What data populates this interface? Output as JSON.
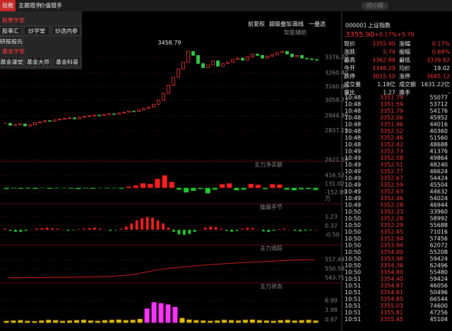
{
  "top_bar": {
    "tabs": [
      "投教",
      "主题猎手",
      "价值猎手"
    ],
    "search": "问小倍"
  },
  "menu": {
    "sections": [
      {
        "title": "股票学堂",
        "items": [
          "股事汇",
          "炒学堂",
          "炒选内参",
          "研报报告"
        ]
      },
      {
        "title": "基金学堂",
        "items": [
          "基金课堂",
          "基金大师",
          "基金科普"
        ]
      }
    ]
  },
  "toolbar": [
    "前复权",
    "超级叠加",
    "画线",
    "一叠选"
  ],
  "main_chart": {
    "label": "智能辅助",
    "max_label": "3458.79",
    "ylim": [
      2610,
      3590
    ],
    "yticks": [
      {
        "value": 3376.2,
        "label": "3376.20"
      },
      {
        "value": 3260.4,
        "label": "3260.40"
      },
      {
        "value": 3160.6,
        "label": "3160.60"
      },
      3059.73,
      2944.99,
      2837.19,
      2621.58
    ],
    "closes": [
      2890,
      2875,
      2880,
      2885,
      2870,
      2878,
      2895,
      2900,
      2910,
      2905,
      2915,
      2920,
      2925,
      2930,
      2922,
      2935,
      2940,
      2945,
      2950,
      2948,
      2955,
      2960,
      2958,
      2965,
      2972,
      2980,
      2978,
      2990,
      3000,
      3010,
      3030,
      3060,
      3110,
      3170,
      3230,
      3290,
      3340,
      3420,
      3390,
      3330,
      3300,
      3320,
      3350,
      3310,
      3330,
      3340,
      3360,
      3370,
      3355,
      3380,
      3400,
      3390,
      3370,
      3385,
      3395,
      3410,
      3420,
      3400,
      3380,
      3390,
      3370,
      3365,
      3360,
      3356
    ]
  },
  "panels": [
    {
      "label": "主力净买额",
      "type": "bar",
      "unit": "万",
      "ylim": [
        -530,
        890
      ],
      "yticks": [
        416.52,
        131.02,
        -152.89
      ],
      "values": [
        -40,
        -20,
        -30,
        -25,
        -35,
        -10,
        -30,
        -20,
        -15,
        -25,
        -40,
        -20,
        -30,
        -10,
        -20,
        -15,
        -30,
        40,
        80,
        150,
        130,
        300,
        416,
        200,
        -60,
        -150,
        -100,
        -40,
        -180,
        -60,
        120,
        150,
        -80,
        -60,
        130,
        100,
        -40,
        120,
        110,
        -60,
        -80,
        -50,
        -40,
        -70
      ]
    },
    {
      "label": "操盘手节",
      "type": "bar",
      "ylim": [
        -1.44,
        2.5
      ],
      "yticks": [
        1.23,
        0.37,
        {
          "value": -0.5,
          "label": "-0.50"
        }
      ],
      "values": [
        0.1,
        -0.1,
        -0.2,
        -0.2,
        -0.1,
        0,
        0.1,
        0.15,
        0.2,
        0.15,
        0.1,
        0,
        -0.1,
        -0.05,
        0.05,
        0.1,
        0.15,
        0.2,
        0.1,
        0,
        -0.1,
        -0.05,
        0.1,
        0.3,
        0.6,
        0.9,
        1.1,
        1.23,
        1.15,
        0.9,
        0.6,
        0.2,
        -0.2,
        -0.45,
        -0.5,
        -0.4,
        -0.2,
        0,
        0.2,
        0.3,
        0.25,
        0.1,
        -0.1,
        -0.2,
        -0.1,
        0.1,
        0.2,
        0.15,
        0,
        -0.15,
        -0.2,
        -0.1,
        0.05,
        0.1,
        0,
        -0.1,
        -0.15,
        -0.1,
        -0.05,
        0
      ]
    },
    {
      "label": "主力追踪",
      "type": "line",
      "ylim": [
        540,
        568.6
      ],
      "yticks": [
        557.44,
        550.58,
        543.71
      ],
      "values": [
        543.8,
        543.9,
        544,
        544,
        544.1,
        544.2,
        544.3,
        544.4,
        544.6,
        544.8,
        545,
        545.5,
        546.5,
        548,
        549.5,
        550.6,
        551.5,
        552.3,
        553,
        553.6,
        554.1,
        554.6,
        555,
        555.4,
        555.8,
        556.2,
        556.6,
        557,
        557.3,
        557.44
      ]
    },
    {
      "label": "主力状态",
      "type": "bar",
      "ylim": [
        -2.6,
        12.6
      ],
      "yticks": [
        6.99,
        3.98,
        0.97
      ],
      "values": [
        0.6,
        0.7,
        0.8,
        0.6,
        0.5,
        0.7,
        0.9,
        0.8,
        0.6,
        0.7,
        0.8,
        0.9,
        0.7,
        0.6,
        0.8,
        0.9,
        1,
        0.8,
        0.9,
        1.2,
        4.5,
        6.5,
        6.2,
        5.8,
        5,
        1.5,
        1,
        0.8,
        0.7,
        0.6,
        0.7,
        0.9,
        0.8,
        0.7,
        0.9,
        1,
        0.8,
        0.7,
        0.6,
        0.8,
        0.9,
        0.7,
        0.8,
        0.9,
        0.7
      ]
    }
  ],
  "quote": {
    "code": "000001",
    "name": "上证指数",
    "price": "3355.90",
    "pct": "+0.17%",
    "chg": "+5.79",
    "stats": [
      [
        "现价",
        "3355.90",
        "涨幅",
        "0.17%"
      ],
      [
        "涨跌",
        "5.79",
        "振幅",
        "0.69%"
      ],
      [
        "最高",
        "3362.88",
        "最低",
        "3339.92"
      ],
      [
        "今开",
        "3346.29",
        "均价",
        "19.02"
      ],
      [
        "跌停",
        "3015.10",
        "涨停",
        "3685.12"
      ],
      [
        "成交量",
        "1.18亿",
        "成交额",
        "1631.22亿"
      ],
      [
        "量比",
        "1.27",
        "换手",
        "-"
      ]
    ]
  },
  "trades": [
    [
      "10:48",
      "3351.74",
      "55077"
    ],
    [
      "10:48",
      "3351.59",
      "53712"
    ],
    [
      "10:48",
      "3351.79",
      "54176"
    ],
    [
      "10:48",
      "3352.06",
      "45952"
    ],
    [
      "10:48",
      "3351.96",
      "44016"
    ],
    [
      "10:48",
      "3352.52",
      "40360"
    ],
    [
      "10:48",
      "3352.46",
      "51560"
    ],
    [
      "10:48",
      "3352.42",
      "48688"
    ],
    [
      "10:49",
      "3352.73",
      "41376"
    ],
    [
      "10:49",
      "3352.58",
      "49864"
    ],
    [
      "10:49",
      "3352.51",
      "48240"
    ],
    [
      "10:49",
      "3352.77",
      "46624"
    ],
    [
      "10:49",
      "3352.67",
      "54424"
    ],
    [
      "10:49",
      "3352.59",
      "45504"
    ],
    [
      "10:49",
      "3352.63",
      "44632"
    ],
    [
      "10:49",
      "3352.46",
      "54024"
    ],
    [
      "10:49",
      "3352.28",
      "46944"
    ],
    [
      "10:50",
      "3352.33",
      "33960"
    ],
    [
      "10:50",
      "3352.28",
      "58992"
    ],
    [
      "10:50",
      "3352.29",
      "55688"
    ],
    [
      "10:50",
      "3352.45",
      "71016"
    ],
    [
      "10:50",
      "3352.94",
      "57456"
    ],
    [
      "10:50",
      "3353.94",
      "62072"
    ],
    [
      "10:50",
      "3354.00",
      "55208"
    ],
    [
      "10:50",
      "3353.98",
      "59424"
    ],
    [
      "10:50",
      "3354.36",
      "62496"
    ],
    [
      "10:50",
      "3354.80",
      "55480"
    ],
    [
      "10:51",
      "3354.40",
      "59424"
    ],
    [
      "10:51",
      "3354.87",
      "46056"
    ],
    [
      "10:51",
      "3354.81",
      "50496"
    ],
    [
      "10:51",
      "3354.85",
      "66544"
    ],
    [
      "10:51",
      "3355.03",
      "74600"
    ],
    [
      "10:51",
      "3355.81",
      "47256"
    ],
    [
      "10:51",
      "3355.45",
      "45104"
    ]
  ]
}
